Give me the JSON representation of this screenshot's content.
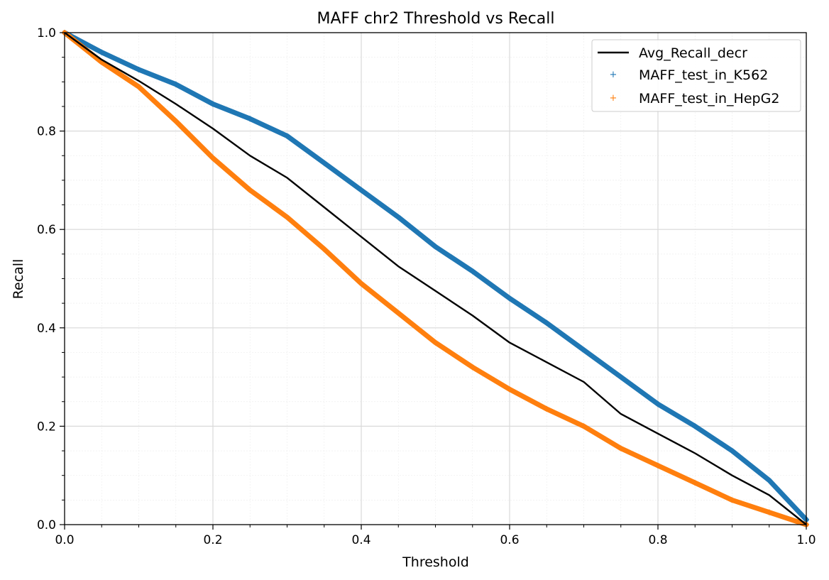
{
  "chart_data": {
    "type": "line",
    "title": "MAFF chr2 Threshold vs Recall",
    "xlabel": "Threshold",
    "ylabel": "Recall",
    "xlim": [
      0.0,
      1.0
    ],
    "ylim": [
      0.0,
      1.0
    ],
    "grid": true,
    "legend_position": "top-right",
    "x_ticks": [
      "0.0",
      "0.2",
      "0.4",
      "0.6",
      "0.8",
      "1.0"
    ],
    "y_ticks": [
      "0.0",
      "0.2",
      "0.4",
      "0.6",
      "0.8",
      "1.0"
    ],
    "series": [
      {
        "name": "Avg_Recall_decr",
        "style": "line",
        "color": "#000000",
        "x": [
          0.0,
          0.05,
          0.1,
          0.15,
          0.2,
          0.25,
          0.3,
          0.35,
          0.4,
          0.45,
          0.5,
          0.55,
          0.6,
          0.65,
          0.7,
          0.75,
          0.8,
          0.85,
          0.9,
          0.95,
          1.0
        ],
        "y": [
          1.0,
          0.945,
          0.902,
          0.855,
          0.805,
          0.75,
          0.705,
          0.645,
          0.585,
          0.525,
          0.475,
          0.425,
          0.37,
          0.33,
          0.29,
          0.225,
          0.185,
          0.145,
          0.1,
          0.06,
          0.0
        ]
      },
      {
        "name": "MAFF_test_in_K562",
        "style": "markers",
        "marker": "+",
        "color": "#1f77b4",
        "x": [
          0.0,
          0.05,
          0.1,
          0.15,
          0.2,
          0.25,
          0.3,
          0.35,
          0.4,
          0.45,
          0.5,
          0.55,
          0.6,
          0.65,
          0.7,
          0.75,
          0.8,
          0.85,
          0.9,
          0.95,
          1.0
        ],
        "y": [
          1.0,
          0.96,
          0.925,
          0.895,
          0.855,
          0.825,
          0.79,
          0.735,
          0.68,
          0.625,
          0.565,
          0.515,
          0.46,
          0.41,
          0.355,
          0.3,
          0.245,
          0.2,
          0.15,
          0.09,
          0.01
        ]
      },
      {
        "name": "MAFF_test_in_HepG2",
        "style": "markers",
        "marker": "+",
        "color": "#ff7f0e",
        "x": [
          0.0,
          0.05,
          0.1,
          0.15,
          0.2,
          0.25,
          0.3,
          0.35,
          0.4,
          0.45,
          0.5,
          0.55,
          0.6,
          0.65,
          0.7,
          0.75,
          0.8,
          0.85,
          0.9,
          0.95,
          1.0
        ],
        "y": [
          1.0,
          0.94,
          0.89,
          0.82,
          0.745,
          0.68,
          0.625,
          0.56,
          0.49,
          0.43,
          0.37,
          0.32,
          0.275,
          0.235,
          0.2,
          0.155,
          0.12,
          0.085,
          0.05,
          0.025,
          0.0
        ]
      }
    ]
  }
}
